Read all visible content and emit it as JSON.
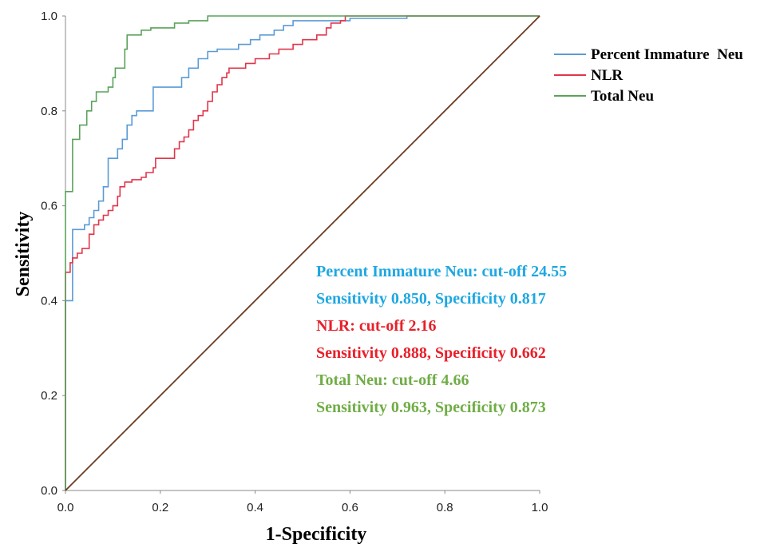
{
  "chart_data": {
    "type": "line",
    "xlabel": "1-Specificity",
    "ylabel": "Sensitivity",
    "xlim": [
      0,
      1
    ],
    "ylim": [
      0,
      1
    ],
    "x_ticks": [
      "0.0",
      "0.2",
      "0.4",
      "0.6",
      "0.8",
      "1.0"
    ],
    "y_ticks": [
      "0.0",
      "0.2",
      "0.4",
      "0.6",
      "0.8",
      "1.0"
    ],
    "grid": false,
    "legend_position": "top-right",
    "series": [
      {
        "name": "Percent Immature  Neu",
        "color": "#5b9bd5",
        "points": [
          [
            0,
            0
          ],
          [
            0,
            0.4
          ],
          [
            0.015,
            0.4
          ],
          [
            0.015,
            0.55
          ],
          [
            0.04,
            0.55
          ],
          [
            0.04,
            0.56
          ],
          [
            0.05,
            0.56
          ],
          [
            0.05,
            0.575
          ],
          [
            0.06,
            0.575
          ],
          [
            0.06,
            0.59
          ],
          [
            0.07,
            0.59
          ],
          [
            0.07,
            0.61
          ],
          [
            0.08,
            0.61
          ],
          [
            0.08,
            0.64
          ],
          [
            0.09,
            0.64
          ],
          [
            0.09,
            0.7
          ],
          [
            0.11,
            0.7
          ],
          [
            0.11,
            0.72
          ],
          [
            0.12,
            0.72
          ],
          [
            0.12,
            0.74
          ],
          [
            0.13,
            0.74
          ],
          [
            0.13,
            0.77
          ],
          [
            0.14,
            0.77
          ],
          [
            0.14,
            0.79
          ],
          [
            0.15,
            0.79
          ],
          [
            0.15,
            0.8
          ],
          [
            0.185,
            0.8
          ],
          [
            0.185,
            0.85
          ],
          [
            0.245,
            0.85
          ],
          [
            0.245,
            0.87
          ],
          [
            0.26,
            0.87
          ],
          [
            0.26,
            0.89
          ],
          [
            0.28,
            0.89
          ],
          [
            0.28,
            0.91
          ],
          [
            0.3,
            0.91
          ],
          [
            0.3,
            0.925
          ],
          [
            0.32,
            0.925
          ],
          [
            0.32,
            0.93
          ],
          [
            0.365,
            0.93
          ],
          [
            0.365,
            0.94
          ],
          [
            0.39,
            0.94
          ],
          [
            0.39,
            0.95
          ],
          [
            0.41,
            0.95
          ],
          [
            0.41,
            0.96
          ],
          [
            0.44,
            0.96
          ],
          [
            0.44,
            0.97
          ],
          [
            0.46,
            0.97
          ],
          [
            0.46,
            0.98
          ],
          [
            0.48,
            0.98
          ],
          [
            0.48,
            0.99
          ],
          [
            0.6,
            0.99
          ],
          [
            0.6,
            0.995
          ],
          [
            0.72,
            0.995
          ],
          [
            0.72,
            1.0
          ],
          [
            1.0,
            1.0
          ]
        ]
      },
      {
        "name": "NLR",
        "color": "#e0364b",
        "points": [
          [
            0,
            0
          ],
          [
            0,
            0.46
          ],
          [
            0.01,
            0.46
          ],
          [
            0.01,
            0.48
          ],
          [
            0.015,
            0.48
          ],
          [
            0.015,
            0.49
          ],
          [
            0.025,
            0.49
          ],
          [
            0.025,
            0.5
          ],
          [
            0.035,
            0.5
          ],
          [
            0.035,
            0.51
          ],
          [
            0.05,
            0.51
          ],
          [
            0.05,
            0.54
          ],
          [
            0.06,
            0.54
          ],
          [
            0.06,
            0.56
          ],
          [
            0.07,
            0.56
          ],
          [
            0.07,
            0.57
          ],
          [
            0.08,
            0.57
          ],
          [
            0.08,
            0.58
          ],
          [
            0.09,
            0.58
          ],
          [
            0.09,
            0.59
          ],
          [
            0.1,
            0.59
          ],
          [
            0.1,
            0.6
          ],
          [
            0.11,
            0.6
          ],
          [
            0.11,
            0.62
          ],
          [
            0.115,
            0.62
          ],
          [
            0.115,
            0.64
          ],
          [
            0.125,
            0.64
          ],
          [
            0.125,
            0.65
          ],
          [
            0.14,
            0.65
          ],
          [
            0.14,
            0.655
          ],
          [
            0.16,
            0.655
          ],
          [
            0.16,
            0.66
          ],
          [
            0.17,
            0.66
          ],
          [
            0.17,
            0.67
          ],
          [
            0.185,
            0.67
          ],
          [
            0.185,
            0.68
          ],
          [
            0.19,
            0.68
          ],
          [
            0.19,
            0.7
          ],
          [
            0.23,
            0.7
          ],
          [
            0.23,
            0.72
          ],
          [
            0.24,
            0.72
          ],
          [
            0.24,
            0.735
          ],
          [
            0.25,
            0.735
          ],
          [
            0.25,
            0.745
          ],
          [
            0.26,
            0.745
          ],
          [
            0.26,
            0.76
          ],
          [
            0.27,
            0.76
          ],
          [
            0.27,
            0.78
          ],
          [
            0.28,
            0.78
          ],
          [
            0.28,
            0.79
          ],
          [
            0.29,
            0.79
          ],
          [
            0.29,
            0.8
          ],
          [
            0.3,
            0.8
          ],
          [
            0.3,
            0.82
          ],
          [
            0.31,
            0.82
          ],
          [
            0.31,
            0.84
          ],
          [
            0.32,
            0.84
          ],
          [
            0.32,
            0.855
          ],
          [
            0.33,
            0.855
          ],
          [
            0.33,
            0.87
          ],
          [
            0.34,
            0.87
          ],
          [
            0.34,
            0.88
          ],
          [
            0.345,
            0.88
          ],
          [
            0.345,
            0.89
          ],
          [
            0.38,
            0.89
          ],
          [
            0.38,
            0.9
          ],
          [
            0.4,
            0.9
          ],
          [
            0.4,
            0.91
          ],
          [
            0.43,
            0.91
          ],
          [
            0.43,
            0.92
          ],
          [
            0.45,
            0.92
          ],
          [
            0.45,
            0.93
          ],
          [
            0.48,
            0.93
          ],
          [
            0.48,
            0.94
          ],
          [
            0.5,
            0.94
          ],
          [
            0.5,
            0.95
          ],
          [
            0.53,
            0.95
          ],
          [
            0.53,
            0.96
          ],
          [
            0.55,
            0.96
          ],
          [
            0.55,
            0.975
          ],
          [
            0.56,
            0.975
          ],
          [
            0.56,
            0.985
          ],
          [
            0.58,
            0.985
          ],
          [
            0.58,
            0.99
          ],
          [
            0.59,
            0.99
          ],
          [
            0.59,
            1.0
          ],
          [
            1.0,
            1.0
          ]
        ]
      },
      {
        "name": "Total Neu",
        "color": "#5aa35a",
        "points": [
          [
            0,
            0
          ],
          [
            0,
            0.63
          ],
          [
            0.015,
            0.63
          ],
          [
            0.015,
            0.74
          ],
          [
            0.03,
            0.74
          ],
          [
            0.03,
            0.77
          ],
          [
            0.045,
            0.77
          ],
          [
            0.045,
            0.8
          ],
          [
            0.055,
            0.8
          ],
          [
            0.055,
            0.82
          ],
          [
            0.065,
            0.82
          ],
          [
            0.065,
            0.84
          ],
          [
            0.09,
            0.84
          ],
          [
            0.09,
            0.85
          ],
          [
            0.1,
            0.85
          ],
          [
            0.1,
            0.87
          ],
          [
            0.105,
            0.87
          ],
          [
            0.105,
            0.89
          ],
          [
            0.125,
            0.89
          ],
          [
            0.125,
            0.93
          ],
          [
            0.13,
            0.93
          ],
          [
            0.13,
            0.96
          ],
          [
            0.16,
            0.96
          ],
          [
            0.16,
            0.97
          ],
          [
            0.18,
            0.97
          ],
          [
            0.18,
            0.975
          ],
          [
            0.23,
            0.975
          ],
          [
            0.23,
            0.985
          ],
          [
            0.26,
            0.985
          ],
          [
            0.26,
            0.99
          ],
          [
            0.3,
            0.99
          ],
          [
            0.3,
            1.0
          ],
          [
            1.0,
            1.0
          ]
        ]
      },
      {
        "name": "",
        "color": "#6b3a1f",
        "points": [
          [
            0,
            0
          ],
          [
            1,
            1
          ]
        ]
      }
    ],
    "annotations": [
      {
        "text": "Percent Immature Neu: cut-off 24.55",
        "color": "#1ea7e1"
      },
      {
        "text": "Sensitivity 0.850, Specificity 0.817",
        "color": "#1ea7e1"
      },
      {
        "text": "NLR: cut-off 2.16",
        "color": "#e8202a"
      },
      {
        "text": "Sensitivity 0.888, Specificity 0.662",
        "color": "#e8202a"
      },
      {
        "text": "Total Neu: cut-off 4.66",
        "color": "#70ad47"
      },
      {
        "text": "Sensitivity 0.963, Specificity 0.873",
        "color": "#70ad47"
      }
    ]
  }
}
